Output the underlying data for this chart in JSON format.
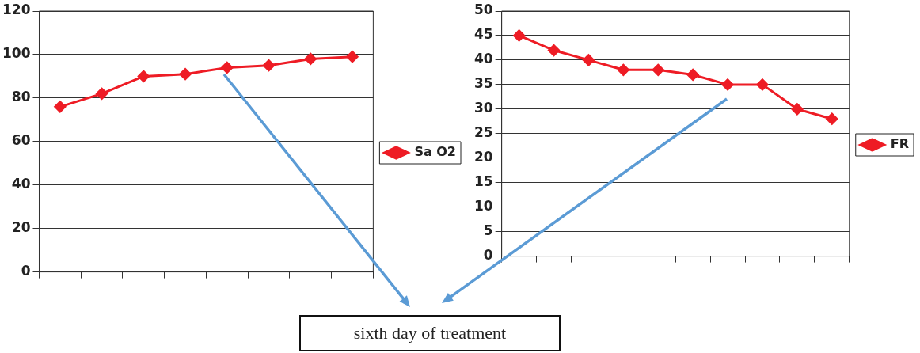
{
  "chart_data": [
    {
      "type": "line",
      "categories": [
        null,
        null,
        null,
        null,
        null,
        null,
        null,
        null
      ],
      "series": [
        {
          "name": "Sa O2",
          "color": "#ee1c25",
          "values": [
            76,
            82,
            90,
            91,
            94,
            95,
            98,
            99
          ]
        }
      ],
      "ylim": [
        0,
        120
      ],
      "yticks": [
        0,
        20,
        40,
        60,
        80,
        100,
        120
      ],
      "grid": "y",
      "legend": "right",
      "marker": "diamond",
      "line_style": "solid"
    },
    {
      "type": "line",
      "categories": [
        null,
        null,
        null,
        null,
        null,
        null,
        null,
        null,
        null,
        null
      ],
      "series": [
        {
          "name": "FR",
          "color": "#ee1c25",
          "values": [
            45,
            42,
            40,
            38,
            38,
            37,
            35,
            35,
            30,
            28
          ]
        }
      ],
      "ylim": [
        0,
        50
      ],
      "yticks": [
        0,
        5,
        10,
        15,
        20,
        25,
        30,
        35,
        40,
        45,
        50
      ],
      "grid": "y",
      "legend": "right",
      "marker": "diamond",
      "line_style": "solid"
    },
    {
      "type": "other",
      "annotations": [
        "sixth day of treatment"
      ]
    }
  ]
}
